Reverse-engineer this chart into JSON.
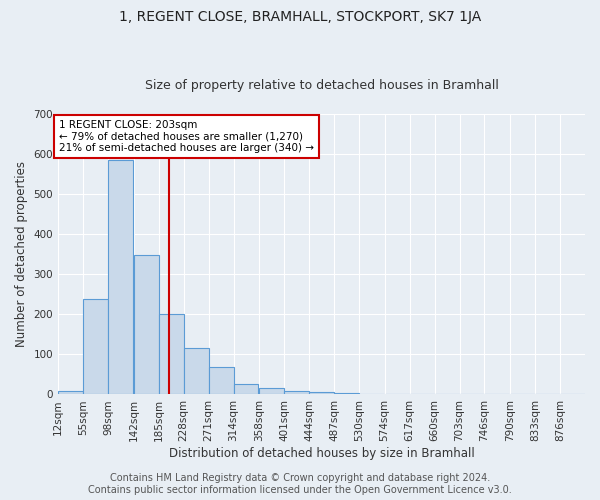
{
  "title": "1, REGENT CLOSE, BRAMHALL, STOCKPORT, SK7 1JA",
  "subtitle": "Size of property relative to detached houses in Bramhall",
  "xlabel": "Distribution of detached houses by size in Bramhall",
  "ylabel": "Number of detached properties",
  "bin_labels": [
    "12sqm",
    "55sqm",
    "98sqm",
    "142sqm",
    "185sqm",
    "228sqm",
    "271sqm",
    "314sqm",
    "358sqm",
    "401sqm",
    "444sqm",
    "487sqm",
    "530sqm",
    "574sqm",
    "617sqm",
    "660sqm",
    "703sqm",
    "746sqm",
    "790sqm",
    "833sqm",
    "876sqm"
  ],
  "bar_heights": [
    8,
    238,
    585,
    348,
    202,
    117,
    68,
    25,
    15,
    8,
    5,
    4,
    0,
    0,
    0,
    0,
    0,
    0,
    0,
    0,
    0
  ],
  "bar_color": "#c9d9ea",
  "bar_edge_color": "#5b9bd5",
  "vline_x": 203,
  "bin_edges": [
    12,
    55,
    98,
    142,
    185,
    228,
    271,
    314,
    358,
    401,
    444,
    487,
    530,
    574,
    617,
    660,
    703,
    746,
    790,
    833,
    876
  ],
  "bin_width": 43,
  "annotation_line1": "1 REGENT CLOSE: 203sqm",
  "annotation_line2": "← 79% of detached houses are smaller (1,270)",
  "annotation_line3": "21% of semi-detached houses are larger (340) →",
  "annotation_box_color": "#ffffff",
  "annotation_box_edge": "#cc0000",
  "footer_text": "Contains HM Land Registry data © Crown copyright and database right 2024.\nContains public sector information licensed under the Open Government Licence v3.0.",
  "ylim": [
    0,
    700
  ],
  "yticks": [
    0,
    100,
    200,
    300,
    400,
    500,
    600,
    700
  ],
  "bg_color": "#e8eef4",
  "vline_color": "#cc0000",
  "title_fontsize": 10,
  "subtitle_fontsize": 9,
  "xlabel_fontsize": 8.5,
  "ylabel_fontsize": 8.5,
  "tick_fontsize": 7.5,
  "annotation_fontsize": 7.5,
  "footer_fontsize": 7
}
